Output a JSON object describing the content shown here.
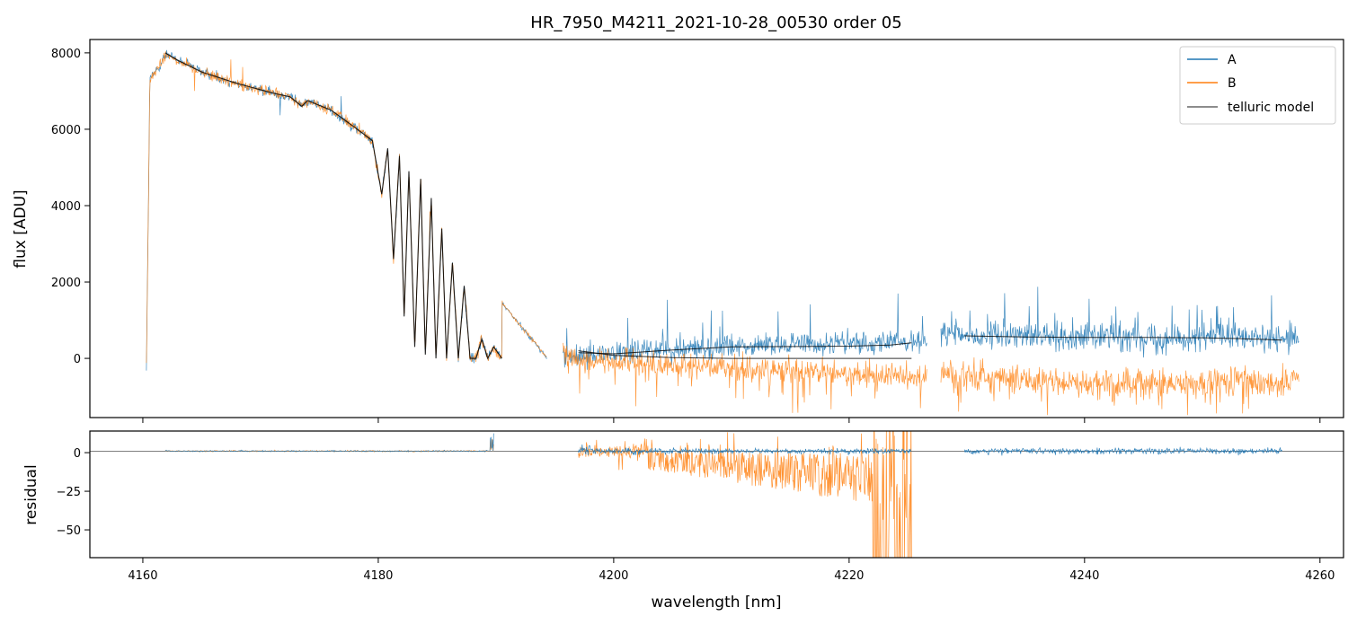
{
  "chart_data": [
    {
      "type": "line",
      "panel": "main",
      "title": "HR_7950_M4211_2021-10-28_00530  order 05",
      "xlabel": "",
      "ylabel": "flux [ADU]",
      "xlim": [
        4155.5,
        4262.0
      ],
      "ylim": [
        -1550,
        8350
      ],
      "x_ticks": [
        4160,
        4180,
        4200,
        4220,
        4240,
        4260
      ],
      "y_ticks": [
        0,
        2000,
        4000,
        6000,
        8000
      ],
      "y_tick_labels": [
        "0",
        "2000",
        "4000",
        "6000",
        "8000"
      ],
      "legend": {
        "placement": "top-right",
        "entries": [
          "A",
          "B",
          "telluric model"
        ]
      },
      "segments": [
        {
          "x": [
            4160.3,
            4194.3
          ],
          "note": "segment 1 (A and B overlap)"
        },
        {
          "x": [
            4195.7,
            4226.6
          ],
          "note": "segment 2"
        },
        {
          "x": [
            4227.8,
            4258.2
          ],
          "note": "segment 3"
        }
      ],
      "series": [
        {
          "name": "A",
          "color": "#1f77b4",
          "envelope": [
            {
              "x": 4160.3,
              "y": -250
            },
            {
              "x": 4160.6,
              "y": 7300
            },
            {
              "x": 4162,
              "y": 7950
            },
            {
              "x": 4165,
              "y": 7600
            },
            {
              "x": 4170,
              "y": 7100
            },
            {
              "x": 4175,
              "y": 6700
            },
            {
              "x": 4178,
              "y": 6000
            },
            {
              "x": 4180,
              "y": 5400
            },
            {
              "x": 4194.3,
              "y": 30
            },
            {
              "x": 4195.7,
              "y": 0
            },
            {
              "x": 4205,
              "y": 250
            },
            {
              "x": 4215,
              "y": 350
            },
            {
              "x": 4226.6,
              "y": 450
            },
            {
              "x": 4227.8,
              "y": 600
            },
            {
              "x": 4240,
              "y": 580
            },
            {
              "x": 4258.2,
              "y": 500
            }
          ]
        },
        {
          "name": "B",
          "color": "#ff7f0e",
          "envelope": [
            {
              "x": 4160.3,
              "y": -250
            },
            {
              "x": 4160.6,
              "y": 7300
            },
            {
              "x": 4162,
              "y": 7950
            },
            {
              "x": 4170,
              "y": 7100
            },
            {
              "x": 4180,
              "y": 5400
            },
            {
              "x": 4194.3,
              "y": 30
            },
            {
              "x": 4195.7,
              "y": 0
            },
            {
              "x": 4210,
              "y": -250
            },
            {
              "x": 4226.6,
              "y": -500
            },
            {
              "x": 4227.8,
              "y": -400
            },
            {
              "x": 4240,
              "y": -650
            },
            {
              "x": 4258.2,
              "y": -600
            }
          ]
        },
        {
          "name": "telluric model",
          "color": "#000000",
          "points": [
            {
              "x": 4161.9,
              "y": 8000
            },
            {
              "x": 4163,
              "y": 7800
            },
            {
              "x": 4165,
              "y": 7500
            },
            {
              "x": 4168,
              "y": 7200
            },
            {
              "x": 4171,
              "y": 6950
            },
            {
              "x": 4172.5,
              "y": 6850
            },
            {
              "x": 4173.5,
              "y": 6600
            },
            {
              "x": 4174,
              "y": 6750
            },
            {
              "x": 4176,
              "y": 6500
            },
            {
              "x": 4178,
              "y": 6050
            },
            {
              "x": 4179.5,
              "y": 5700
            },
            {
              "x": 4180.3,
              "y": 4300
            },
            {
              "x": 4180.8,
              "y": 5500
            },
            {
              "x": 4181.3,
              "y": 2600
            },
            {
              "x": 4181.8,
              "y": 5300
            },
            {
              "x": 4182.2,
              "y": 1100
            },
            {
              "x": 4182.6,
              "y": 4900
            },
            {
              "x": 4183.1,
              "y": 300
            },
            {
              "x": 4183.6,
              "y": 4700
            },
            {
              "x": 4184.0,
              "y": 100
            },
            {
              "x": 4184.5,
              "y": 4200
            },
            {
              "x": 4184.9,
              "y": 0
            },
            {
              "x": 4185.4,
              "y": 3400
            },
            {
              "x": 4185.8,
              "y": 0
            },
            {
              "x": 4186.3,
              "y": 2500
            },
            {
              "x": 4186.8,
              "y": 0
            },
            {
              "x": 4187.3,
              "y": 1900
            },
            {
              "x": 4187.8,
              "y": 0
            },
            {
              "x": 4188.3,
              "y": 0
            },
            {
              "x": 4188.8,
              "y": 500
            },
            {
              "x": 4189.3,
              "y": 0
            },
            {
              "x": 4189.8,
              "y": 300
            },
            {
              "x": 4190.5,
              "y": 0
            }
          ],
          "extra_lines": [
            [
              {
                "x": 4197,
                "y": 150
              },
              {
                "x": 4200,
                "y": 120
              },
              {
                "x": 4205,
                "y": 220
              },
              {
                "x": 4210,
                "y": 300
              },
              {
                "x": 4215,
                "y": 310
              },
              {
                "x": 4220,
                "y": 320
              },
              {
                "x": 4223.5,
                "y": 350
              },
              {
                "x": 4225.3,
                "y": 410
              }
            ],
            [
              {
                "x": 4197,
                "y": 200
              },
              {
                "x": 4200,
                "y": 80
              },
              {
                "x": 4205,
                "y": 20
              },
              {
                "x": 4210,
                "y": 0
              },
              {
                "x": 4215,
                "y": 0
              },
              {
                "x": 4220,
                "y": 0
              },
              {
                "x": 4225.3,
                "y": 0
              }
            ],
            [
              {
                "x": 4229.8,
                "y": 590
              },
              {
                "x": 4235,
                "y": 560
              },
              {
                "x": 4240,
                "y": 550
              },
              {
                "x": 4245,
                "y": 550
              },
              {
                "x": 4250,
                "y": 540
              },
              {
                "x": 4253,
                "y": 520
              },
              {
                "x": 4256.8,
                "y": 480
              }
            ]
          ]
        }
      ]
    },
    {
      "type": "line",
      "panel": "residual",
      "xlabel": "wavelength [nm]",
      "ylabel": "residual",
      "xlim": [
        4155.5,
        4262.0
      ],
      "ylim": [
        -68,
        14
      ],
      "x_ticks": [
        4160,
        4180,
        4200,
        4220,
        4240,
        4260
      ],
      "x_tick_labels": [
        "4160",
        "4180",
        "4200",
        "4220",
        "4240",
        "4260"
      ],
      "y_ticks": [
        0,
        -25,
        -50
      ],
      "y_tick_labels": [
        "0",
        "−25",
        "−50"
      ],
      "reference_line_y": 1,
      "series": [
        {
          "name": "A",
          "color": "#1f77b4",
          "segments": [
            [
              4161.9,
              4189.8
            ],
            [
              4197,
              4225.3
            ],
            [
              4229.8,
              4256.8
            ]
          ]
        },
        {
          "name": "B",
          "color": "#ff7f0e",
          "segments": [
            [
              4161.9,
              4189.8
            ],
            [
              4197,
              4225.3
            ]
          ],
          "note": "large negative residuals from 4203 to 4225"
        }
      ]
    }
  ]
}
